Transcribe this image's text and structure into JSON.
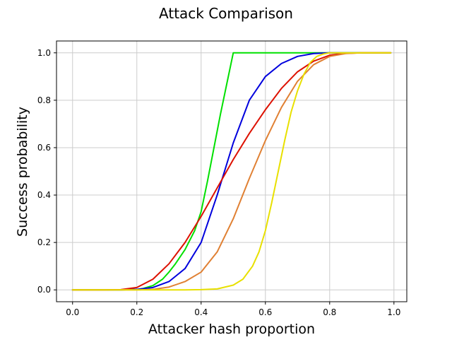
{
  "chart_data": {
    "type": "line",
    "title": "Attack Comparison",
    "xlabel": "Attacker hash proportion",
    "ylabel": "Success probability",
    "xlim": [
      -0.05,
      1.04
    ],
    "ylim": [
      -0.05,
      1.05
    ],
    "xticks": [
      0.0,
      0.2,
      0.4,
      0.6,
      0.8,
      1.0
    ],
    "xtick_labels": [
      "0.0",
      "0.2",
      "0.4",
      "0.6",
      "0.8",
      "1.0"
    ],
    "yticks": [
      0.0,
      0.2,
      0.4,
      0.6,
      0.8,
      1.0
    ],
    "ytick_labels": [
      "0.0",
      "0.2",
      "0.4",
      "0.6",
      "0.8",
      "1.0"
    ],
    "grid": true,
    "x": [
      0.0,
      0.05,
      0.1,
      0.15,
      0.2,
      0.25,
      0.3,
      0.35,
      0.4,
      0.45,
      0.5,
      0.55,
      0.6,
      0.65,
      0.7,
      0.75,
      0.8,
      0.85,
      0.9,
      0.95,
      0.99
    ],
    "series": [
      {
        "color": "#00e000",
        "x": [
          0.0,
          0.05,
          0.1,
          0.15,
          0.2,
          0.22,
          0.25,
          0.28,
          0.3,
          0.32,
          0.35,
          0.38,
          0.4,
          0.42,
          0.44,
          0.46,
          0.48,
          0.5,
          0.55,
          0.6,
          0.65,
          0.7,
          0.75,
          0.8,
          0.85,
          0.9,
          0.95,
          0.99
        ],
        "values": [
          0.0,
          0.0,
          0.0,
          0.0,
          0.002,
          0.006,
          0.018,
          0.045,
          0.075,
          0.11,
          0.17,
          0.25,
          0.33,
          0.46,
          0.6,
          0.74,
          0.87,
          1.0,
          1.0,
          1.0,
          1.0,
          1.0,
          1.0,
          1.0,
          1.0,
          1.0,
          1.0,
          1.0
        ]
      },
      {
        "color": "#0000dd",
        "x": [
          0.0,
          0.05,
          0.1,
          0.15,
          0.2,
          0.25,
          0.3,
          0.35,
          0.4,
          0.45,
          0.5,
          0.55,
          0.6,
          0.65,
          0.7,
          0.75,
          0.8,
          0.85,
          0.9,
          0.95,
          0.99
        ],
        "values": [
          0.0,
          0.0,
          0.0,
          0.0,
          0.002,
          0.01,
          0.035,
          0.09,
          0.2,
          0.4,
          0.62,
          0.8,
          0.9,
          0.955,
          0.985,
          0.997,
          1.0,
          1.0,
          1.0,
          1.0,
          1.0
        ]
      },
      {
        "color": "#dd1100",
        "x": [
          0.0,
          0.05,
          0.1,
          0.15,
          0.2,
          0.25,
          0.3,
          0.35,
          0.4,
          0.45,
          0.5,
          0.55,
          0.6,
          0.65,
          0.7,
          0.75,
          0.8,
          0.85,
          0.9,
          0.95,
          0.99
        ],
        "values": [
          0.0,
          0.0,
          0.0,
          0.001,
          0.01,
          0.045,
          0.11,
          0.2,
          0.31,
          0.43,
          0.55,
          0.66,
          0.76,
          0.85,
          0.92,
          0.965,
          0.99,
          0.998,
          1.0,
          1.0,
          1.0
        ]
      },
      {
        "color": "#e08033",
        "x": [
          0.0,
          0.05,
          0.1,
          0.15,
          0.2,
          0.25,
          0.3,
          0.35,
          0.4,
          0.45,
          0.5,
          0.55,
          0.6,
          0.65,
          0.7,
          0.75,
          0.8,
          0.85,
          0.9,
          0.95,
          0.99
        ],
        "values": [
          0.0,
          0.0,
          0.0,
          0.0,
          0.0,
          0.002,
          0.012,
          0.035,
          0.075,
          0.16,
          0.3,
          0.47,
          0.63,
          0.77,
          0.88,
          0.95,
          0.985,
          0.997,
          1.0,
          1.0,
          1.0
        ]
      },
      {
        "color": "#e8e000",
        "x": [
          0.0,
          0.05,
          0.1,
          0.15,
          0.2,
          0.25,
          0.3,
          0.35,
          0.4,
          0.45,
          0.5,
          0.53,
          0.56,
          0.58,
          0.6,
          0.62,
          0.64,
          0.66,
          0.68,
          0.7,
          0.72,
          0.74,
          0.76,
          0.78,
          0.8,
          0.85,
          0.9,
          0.95,
          0.99
        ],
        "values": [
          0.0,
          0.0,
          0.0,
          0.0,
          0.0,
          0.0,
          0.0,
          0.0,
          0.001,
          0.004,
          0.02,
          0.045,
          0.1,
          0.16,
          0.25,
          0.37,
          0.5,
          0.63,
          0.75,
          0.84,
          0.91,
          0.96,
          0.985,
          0.995,
          1.0,
          1.0,
          1.0,
          1.0,
          1.0
        ]
      }
    ]
  }
}
